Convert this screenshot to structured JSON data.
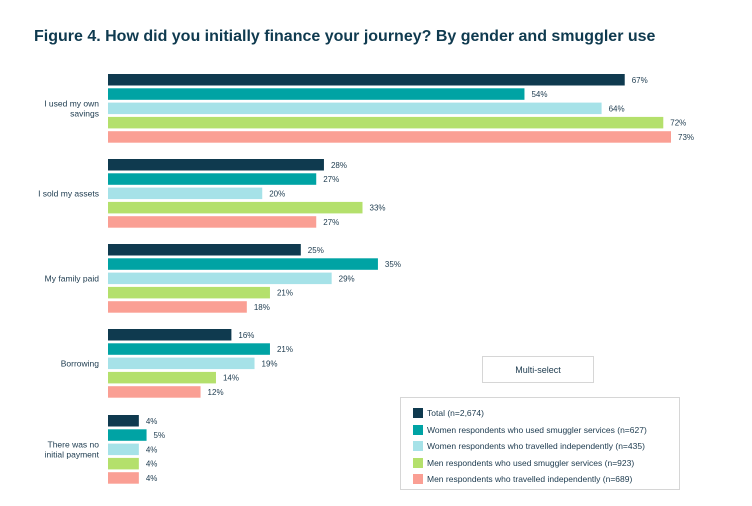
{
  "chart_data": {
    "type": "bar",
    "orientation": "horizontal",
    "title": "Figure 4. How did you initially finance your journey? By gender and smuggler use",
    "categories": [
      [
        "I used my own",
        "savings"
      ],
      [
        "I sold my assets"
      ],
      [
        "My family paid"
      ],
      [
        "Borrowing"
      ],
      [
        "There was no",
        "initial payment"
      ]
    ],
    "series": [
      {
        "name": "Total (n=2,674)",
        "color": "#0f3a4f",
        "values": [
          67,
          28,
          25,
          16,
          4
        ]
      },
      {
        "name": "Women respondents who used smuggler services (n=627)",
        "color": "#00a3a4",
        "values": [
          54,
          27,
          35,
          21,
          5
        ]
      },
      {
        "name": "Women respondents who travelled independently (n=435)",
        "color": "#a6e2e8",
        "values": [
          64,
          20,
          29,
          19,
          4
        ]
      },
      {
        "name": "Men respondents who used smuggler services (n=923)",
        "color": "#b4e06c",
        "values": [
          72,
          33,
          21,
          14,
          4
        ]
      },
      {
        "name": "Men respondents who travelled independently (n=689)",
        "color": "#fa9f94",
        "values": [
          73,
          27,
          18,
          12,
          4
        ]
      }
    ],
    "value_suffix": "%",
    "xlim": [
      0,
      73
    ],
    "legend_position": "bottom-right"
  },
  "note": "Multi-select"
}
